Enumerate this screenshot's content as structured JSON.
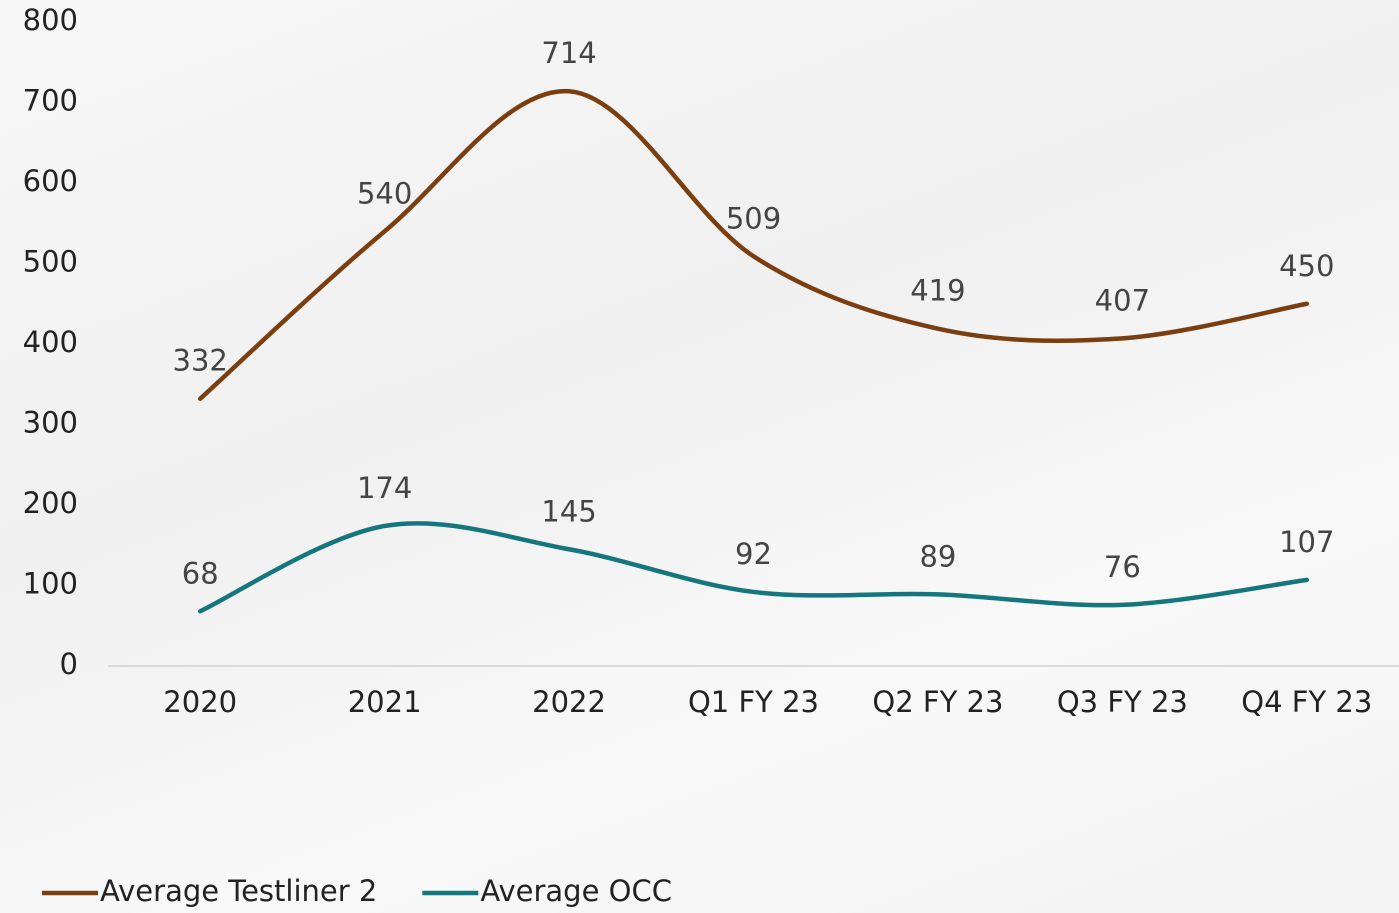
{
  "chart_data": {
    "type": "line",
    "categories": [
      "2020",
      "2021",
      "2022",
      "Q1 FY 23",
      "Q2 FY 23",
      "Q3 FY 23",
      "Q4 FY 23"
    ],
    "series": [
      {
        "name": "Average Testliner 2",
        "color": "#7a3e10",
        "values": [
          332,
          540,
          714,
          509,
          419,
          407,
          450
        ]
      },
      {
        "name": "Average OCC",
        "color": "#15777d",
        "values": [
          68,
          174,
          145,
          92,
          89,
          76,
          107
        ]
      }
    ],
    "ylim": [
      0,
      800
    ],
    "yticks": [
      0,
      100,
      200,
      300,
      400,
      500,
      600,
      700,
      800
    ],
    "smooth": true,
    "legend": "bottom-left"
  }
}
